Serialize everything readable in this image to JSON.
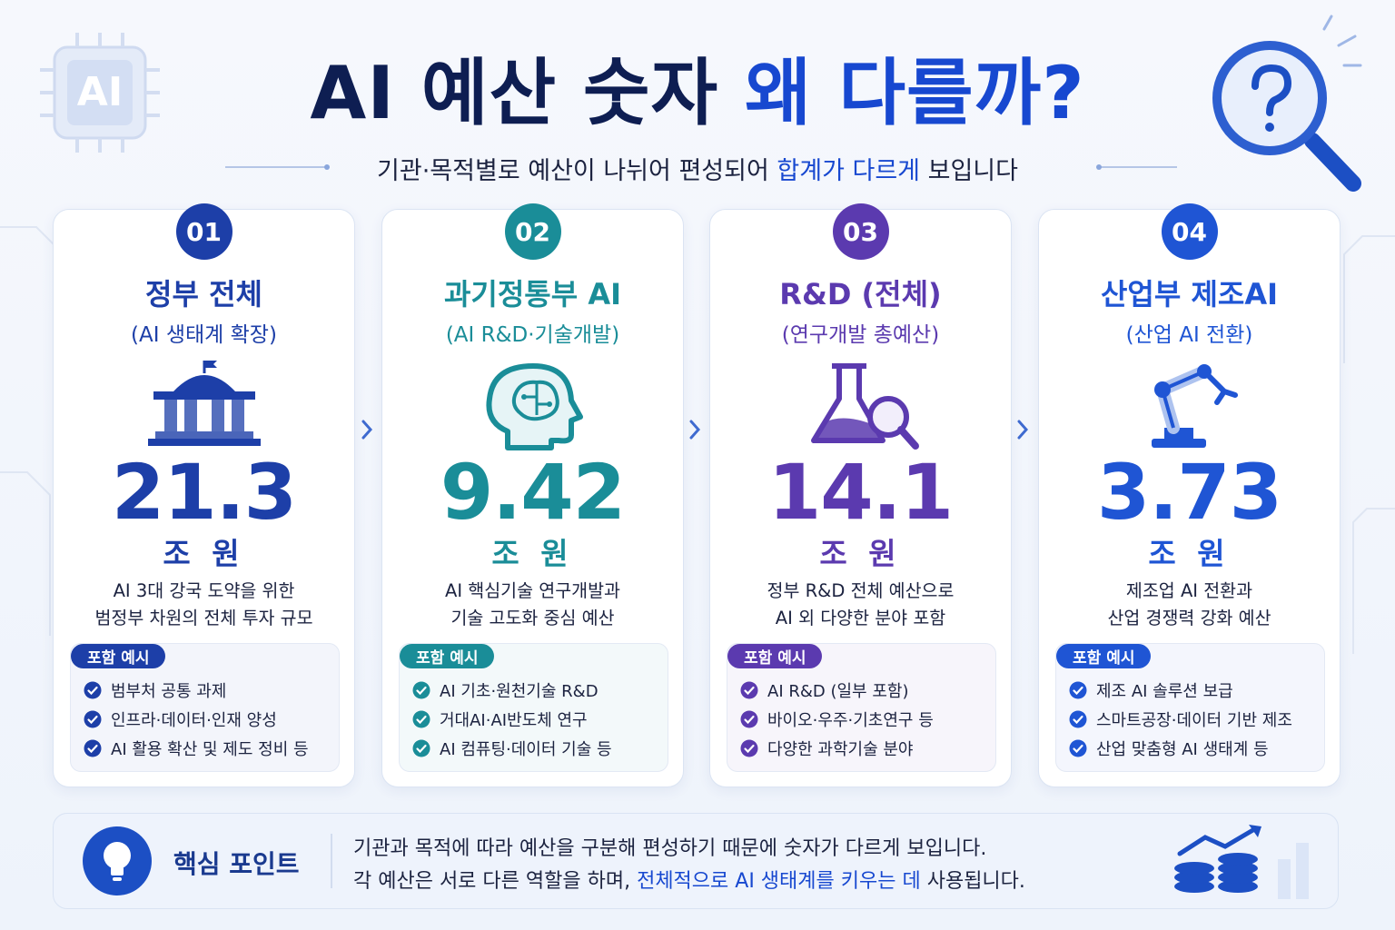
{
  "header": {
    "chip_label": "AI",
    "title": [
      "AI 예산 숫자",
      " 왜 다를까?"
    ],
    "subtitle": [
      "기관·목적별로 예산이 나뉘어 편성되어 ",
      "합계가 다르게",
      " 보입니다"
    ]
  },
  "cards": [
    {
      "number": "01",
      "color": "#1d3fa8",
      "title": "정부 전체",
      "subtitle": "(AI 생태계 확장)",
      "amount": 21.3,
      "unit": "조 원",
      "description": [
        "AI 3대 강국 도약을 위한",
        "범정부 차원의 전체 투자 규모"
      ],
      "badge": "포함 예시",
      "items": [
        "범부처 공통 과제",
        "인프라·데이터·인재 양성",
        "AI 활용 확산 및 제도 정비 등"
      ]
    },
    {
      "number": "02",
      "color": "#1a8d98",
      "title": "과기정통부 AI",
      "subtitle": "(AI R&D·기술개발)",
      "amount": 9.42,
      "unit": "조 원",
      "description": [
        "AI 핵심기술 연구개발과",
        "기술 고도화 중심 예산"
      ],
      "badge": "포함 예시",
      "items": [
        "AI 기초·원천기술 R&D",
        "거대AI·AI반도체 연구",
        "AI 컴퓨팅·데이터 기술 등"
      ]
    },
    {
      "number": "03",
      "color": "#5b3aaf",
      "title": "R&D (전체)",
      "subtitle": "(연구개발 총예산)",
      "amount": 14.1,
      "unit": "조 원",
      "description": [
        "정부 R&D 전체 예산으로",
        "AI 외 다양한 분야 포함"
      ],
      "badge": "포함 예시",
      "items": [
        "AI R&D (일부 포함)",
        "바이오·우주·기초연구 등",
        "다양한 과학기술 분야"
      ]
    },
    {
      "number": "04",
      "color": "#1f55d4",
      "title": "산업부 제조AI",
      "subtitle": "(산업 AI 전환)",
      "amount": 3.73,
      "unit": "조 원",
      "description": [
        "제조업 AI 전환과",
        "산업 경쟁력 강화 예산"
      ],
      "badge": "포함 예시",
      "items": [
        "제조 AI 솔루션 보급",
        "스마트공장·데이터 기반 제조",
        "산업 맞춤형 AI 생태계 등"
      ]
    }
  ],
  "footer": {
    "label": "핵심 포인트",
    "line1": "기관과 목적에 따라 예산을 구분해 편성하기 때문에 숫자가 다르게 보입니다.",
    "line2": [
      "각 예산은 서로 다른 역할을 하며, ",
      "전체적으로 AI 생태계를 키우는 데",
      " 사용됩니다."
    ]
  }
}
